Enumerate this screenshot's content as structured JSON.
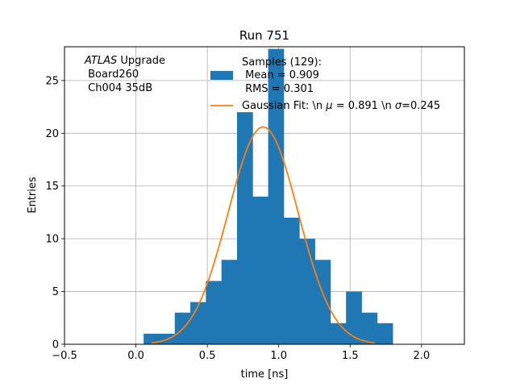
{
  "chart_data": {
    "type": "bar",
    "title": "Run 751",
    "xlabel": "time [ns]",
    "ylabel": "Entries",
    "xlim": [
      -0.5,
      2.3
    ],
    "ylim": [
      0,
      28.2
    ],
    "grid": true,
    "xticks": [
      -0.5,
      0.0,
      0.5,
      1.0,
      1.5,
      2.0
    ],
    "xtick_labels": [
      "−0.5",
      "0.0",
      "0.5",
      "1.0",
      "1.5",
      "2.0"
    ],
    "yticks": [
      0,
      5,
      10,
      15,
      20,
      25
    ],
    "ytick_labels": [
      "0",
      "5",
      "10",
      "15",
      "20",
      "25"
    ],
    "annotation": {
      "line1_italic": "ATLAS",
      "line1_rest": " Upgrade",
      "line2": " Board260",
      "line3": " Ch004 35dB"
    },
    "legend_placement": "top-right",
    "histogram": {
      "color": "#1f77b4",
      "legend_lines": [
        "Samples (129):",
        " Mean = 0.909",
        " RMS = 0.301"
      ],
      "bin_edges": [
        0.054,
        0.163,
        0.272,
        0.381,
        0.49,
        0.599,
        0.708,
        0.817,
        0.926,
        1.035,
        1.144,
        1.253,
        1.362,
        1.471,
        1.58,
        1.689,
        1.798
      ],
      "counts": [
        1,
        1,
        3,
        4,
        6,
        8,
        22,
        14,
        28,
        12,
        10,
        8,
        2,
        5,
        3,
        2
      ]
    },
    "fit": {
      "color": "#ff7f0e",
      "legend_label": "Gaussian Fit: \\n $\\mu$ = 0.891 \\n $\\sigma$=0.245",
      "legend_label_prefix": "Gaussian Fit: \\n ",
      "legend_label_mu": "μ",
      "legend_label_mid": " = 0.891 \\n ",
      "legend_label_sigma": "σ",
      "legend_label_suffix": "=0.245",
      "amplitude": 20.6,
      "mu": 0.891,
      "sigma": 0.245,
      "x_range": [
        0.11,
        1.67
      ]
    }
  }
}
